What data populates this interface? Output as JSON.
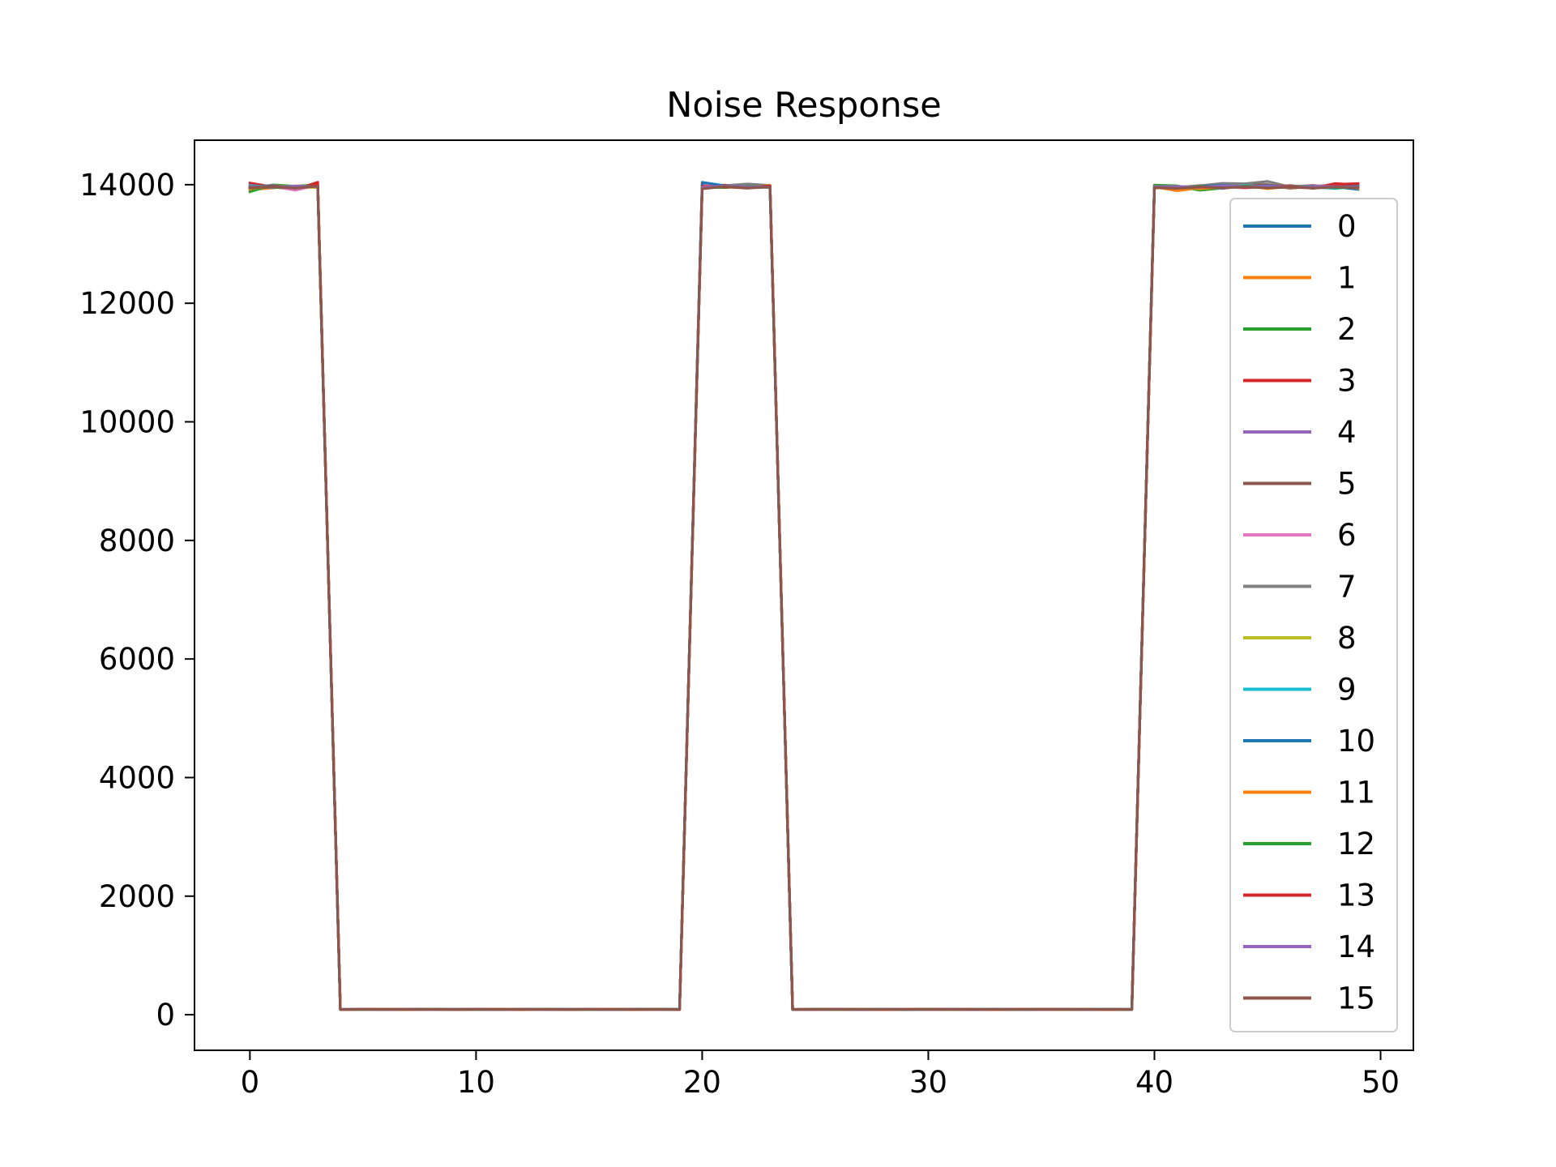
{
  "chart_data": {
    "type": "line",
    "title": "Noise Response",
    "xlabel": "",
    "ylabel": "",
    "xlim": [
      -2.45,
      51.45
    ],
    "ylim": [
      -600,
      14750
    ],
    "xticks": [
      0,
      10,
      20,
      30,
      40,
      50
    ],
    "yticks": [
      0,
      2000,
      4000,
      6000,
      8000,
      10000,
      12000,
      14000
    ],
    "grid": false,
    "legend": "right",
    "x": [
      0,
      1,
      2,
      3,
      4,
      5,
      6,
      7,
      8,
      9,
      10,
      11,
      12,
      13,
      14,
      15,
      16,
      17,
      18,
      19,
      20,
      21,
      22,
      23,
      24,
      25,
      26,
      27,
      28,
      29,
      30,
      31,
      32,
      33,
      34,
      35,
      36,
      37,
      38,
      39,
      40,
      41,
      42,
      43,
      44,
      45,
      46,
      47,
      48,
      49
    ],
    "series": [
      {
        "name": "0",
        "color": "#1f77b4",
        "values": [
          13957,
          13982,
          13961,
          13989,
          92,
          90,
          88,
          91,
          89,
          92,
          90,
          88,
          91,
          89,
          92,
          90,
          88,
          91,
          89,
          92,
          14005,
          13960,
          13972,
          13985,
          90,
          88,
          91,
          89,
          92,
          90,
          88,
          91,
          89,
          92,
          90,
          88,
          91,
          89,
          92,
          90,
          13975,
          13932,
          13961,
          14018,
          13958,
          13990,
          13941,
          13974,
          13964,
          13920
        ]
      },
      {
        "name": "1",
        "color": "#ff7f0e",
        "values": [
          13915,
          13945,
          13980,
          13972,
          91,
          89,
          92,
          90,
          88,
          91,
          89,
          92,
          90,
          88,
          91,
          89,
          92,
          90,
          88,
          91,
          13970,
          13995,
          13950,
          13978,
          89,
          92,
          90,
          88,
          91,
          89,
          92,
          90,
          88,
          91,
          89,
          92,
          90,
          88,
          91,
          89,
          13963,
          13897,
          13946,
          13959,
          13985,
          13932,
          13970,
          13951,
          13978,
          13940
        ]
      },
      {
        "name": "2",
        "color": "#2ca02c",
        "values": [
          13880,
          13996,
          13975,
          13998,
          90,
          88,
          91,
          89,
          92,
          90,
          88,
          91,
          89,
          92,
          90,
          88,
          91,
          89,
          92,
          90,
          13960,
          13955,
          13985,
          13960,
          92,
          90,
          88,
          91,
          89,
          92,
          90,
          88,
          91,
          89,
          92,
          90,
          88,
          91,
          89,
          92,
          13993,
          13981,
          13905,
          13942,
          13973,
          13957,
          13985,
          13938,
          13972,
          13961
        ]
      },
      {
        "name": "3",
        "color": "#d62728",
        "values": [
          14028,
          13963,
          13918,
          14040,
          89,
          92,
          90,
          88,
          91,
          89,
          92,
          90,
          88,
          91,
          89,
          92,
          90,
          88,
          91,
          89,
          13940,
          13990,
          13960,
          13975,
          91,
          89,
          92,
          90,
          88,
          91,
          89,
          92,
          90,
          88,
          91,
          89,
          92,
          90,
          88,
          91,
          13978,
          13945,
          13961,
          13979,
          13970,
          13952,
          13987,
          13941,
          14020,
          13995
        ]
      },
      {
        "name": "4",
        "color": "#9467bd",
        "values": [
          13990,
          13958,
          13938,
          13965,
          92,
          90,
          88,
          91,
          89,
          92,
          90,
          88,
          91,
          89,
          92,
          90,
          88,
          91,
          89,
          92,
          13975,
          13960,
          13985,
          13962,
          90,
          88,
          91,
          89,
          92,
          90,
          88,
          91,
          89,
          92,
          90,
          88,
          91,
          89,
          92,
          90,
          13962,
          13956,
          13970,
          13934,
          13981,
          13966,
          13949,
          13988,
          13950,
          13972
        ]
      },
      {
        "name": "5",
        "color": "#8c564b",
        "values": [
          13940,
          13960,
          13945,
          13978,
          88,
          91,
          89,
          92,
          90,
          88,
          91,
          89,
          92,
          90,
          88,
          91,
          89,
          92,
          90,
          88,
          13950,
          13965,
          13940,
          13970,
          89,
          92,
          90,
          88,
          91,
          89,
          92,
          90,
          88,
          91,
          89,
          92,
          90,
          88,
          91,
          89,
          13944,
          13962,
          13950,
          13980,
          13992,
          14002,
          13936,
          13975,
          13990,
          13955
        ]
      },
      {
        "name": "6",
        "color": "#e377c2",
        "values": [
          13970,
          13975,
          13905,
          13992,
          91,
          89,
          92,
          90,
          88,
          91,
          89,
          92,
          90,
          88,
          91,
          89,
          92,
          90,
          88,
          91,
          13985,
          13978,
          13970,
          13958,
          92,
          90,
          88,
          91,
          89,
          92,
          90,
          88,
          91,
          89,
          92,
          90,
          88,
          91,
          89,
          92,
          13956,
          13947,
          13988,
          13965,
          13945,
          13970,
          13960,
          13991,
          13952,
          13968
        ]
      },
      {
        "name": "7",
        "color": "#7f7f7f",
        "values": [
          13965,
          13990,
          13940,
          13985,
          90,
          88,
          91,
          89,
          92,
          90,
          88,
          91,
          89,
          92,
          90,
          88,
          91,
          89,
          92,
          90,
          13965,
          13985,
          14012,
          13988,
          88,
          91,
          89,
          92,
          90,
          88,
          91,
          89,
          92,
          90,
          88,
          91,
          89,
          92,
          90,
          88,
          13965,
          13958,
          13981,
          14022,
          14016,
          14055,
          13962,
          13984,
          13958,
          13975
        ]
      },
      {
        "name": "8",
        "color": "#bcbd22",
        "values": [
          13938,
          13970,
          13960,
          13952,
          89,
          92,
          90,
          88,
          91,
          89,
          92,
          90,
          88,
          91,
          89,
          92,
          90,
          88,
          91,
          89,
          13950,
          13970,
          13958,
          13990,
          91,
          89,
          92,
          90,
          88,
          91,
          89,
          92,
          90,
          88,
          91,
          89,
          92,
          90,
          88,
          91,
          13940,
          13970,
          13930,
          13972,
          13961,
          13977,
          13943,
          13968,
          13980,
          13949
        ]
      },
      {
        "name": "9",
        "color": "#17becf",
        "values": [
          13985,
          13950,
          13972,
          13966,
          92,
          90,
          88,
          91,
          89,
          92,
          90,
          88,
          91,
          89,
          92,
          90,
          88,
          91,
          89,
          92,
          13940,
          13962,
          13975,
          13950,
          90,
          88,
          91,
          89,
          92,
          90,
          88,
          91,
          89,
          92,
          90,
          88,
          91,
          89,
          92,
          90,
          13972,
          13963,
          13957,
          13946,
          13988,
          13952,
          13980,
          13960,
          13935,
          13970
        ]
      },
      {
        "name": "10",
        "color": "#1f77b4",
        "values": [
          13960,
          13978,
          13955,
          13980,
          88,
          91,
          89,
          92,
          90,
          88,
          91,
          89,
          92,
          90,
          88,
          91,
          89,
          92,
          90,
          88,
          14040,
          13982,
          13965,
          13978,
          89,
          92,
          90,
          88,
          91,
          89,
          92,
          90,
          88,
          91,
          89,
          92,
          90,
          88,
          91,
          89,
          13958,
          13945,
          13972,
          13990,
          13960,
          13985,
          13955,
          13970,
          13962,
          13978
        ]
      },
      {
        "name": "11",
        "color": "#ff7f0e",
        "values": [
          13950,
          13965,
          13972,
          13958,
          91,
          89,
          92,
          90,
          88,
          91,
          89,
          92,
          90,
          88,
          91,
          89,
          92,
          90,
          88,
          91,
          13958,
          13974,
          13962,
          13970,
          92,
          90,
          88,
          91,
          89,
          92,
          90,
          88,
          91,
          89,
          92,
          90,
          88,
          91,
          89,
          92,
          13960,
          13950,
          13935,
          13955,
          13962,
          13948,
          13970,
          13958,
          13966,
          13952
        ]
      },
      {
        "name": "12",
        "color": "#2ca02c",
        "values": [
          13975,
          13948,
          13966,
          13985,
          90,
          88,
          91,
          89,
          92,
          90,
          88,
          91,
          89,
          92,
          90,
          88,
          91,
          89,
          92,
          90,
          13966,
          13950,
          13978,
          13955,
          88,
          91,
          89,
          92,
          90,
          88,
          91,
          89,
          92,
          90,
          88,
          91,
          89,
          92,
          90,
          88,
          13990,
          13960,
          13972,
          13948,
          13980,
          13957,
          13968,
          13975,
          13948,
          13962
        ]
      },
      {
        "name": "13",
        "color": "#d62728",
        "values": [
          13945,
          13972,
          13950,
          13990,
          89,
          92,
          90,
          88,
          91,
          89,
          92,
          90,
          88,
          91,
          89,
          92,
          90,
          88,
          91,
          89,
          13972,
          13960,
          13950,
          13982,
          91,
          89,
          92,
          90,
          88,
          91,
          89,
          92,
          90,
          88,
          91,
          89,
          92,
          90,
          88,
          91,
          13952,
          13948,
          13960,
          13975,
          13950,
          13968,
          13972,
          13955,
          14005,
          14018
        ]
      },
      {
        "name": "14",
        "color": "#9467bd",
        "values": [
          13968,
          13955,
          13978,
          13962,
          92,
          90,
          88,
          91,
          89,
          92,
          90,
          88,
          91,
          89,
          92,
          90,
          88,
          91,
          89,
          92,
          13955,
          13980,
          13966,
          13960,
          90,
          88,
          91,
          89,
          92,
          90,
          88,
          91,
          89,
          92,
          90,
          88,
          91,
          89,
          92,
          90,
          13968,
          13972,
          13955,
          13982,
          13966,
          13975,
          13950,
          13972,
          13968,
          13958
        ]
      },
      {
        "name": "15",
        "color": "#8c564b",
        "values": [
          13950,
          13966,
          13942,
          13975,
          88,
          91,
          89,
          92,
          90,
          88,
          91,
          89,
          92,
          90,
          88,
          91,
          89,
          92,
          90,
          88,
          13930,
          13972,
          13945,
          13958,
          89,
          92,
          90,
          88,
          91,
          89,
          92,
          90,
          88,
          91,
          89,
          92,
          90,
          88,
          91,
          89,
          13950,
          13938,
          13960,
          13948,
          13962,
          13945,
          13958,
          13942,
          13960,
          13948
        ]
      }
    ]
  }
}
